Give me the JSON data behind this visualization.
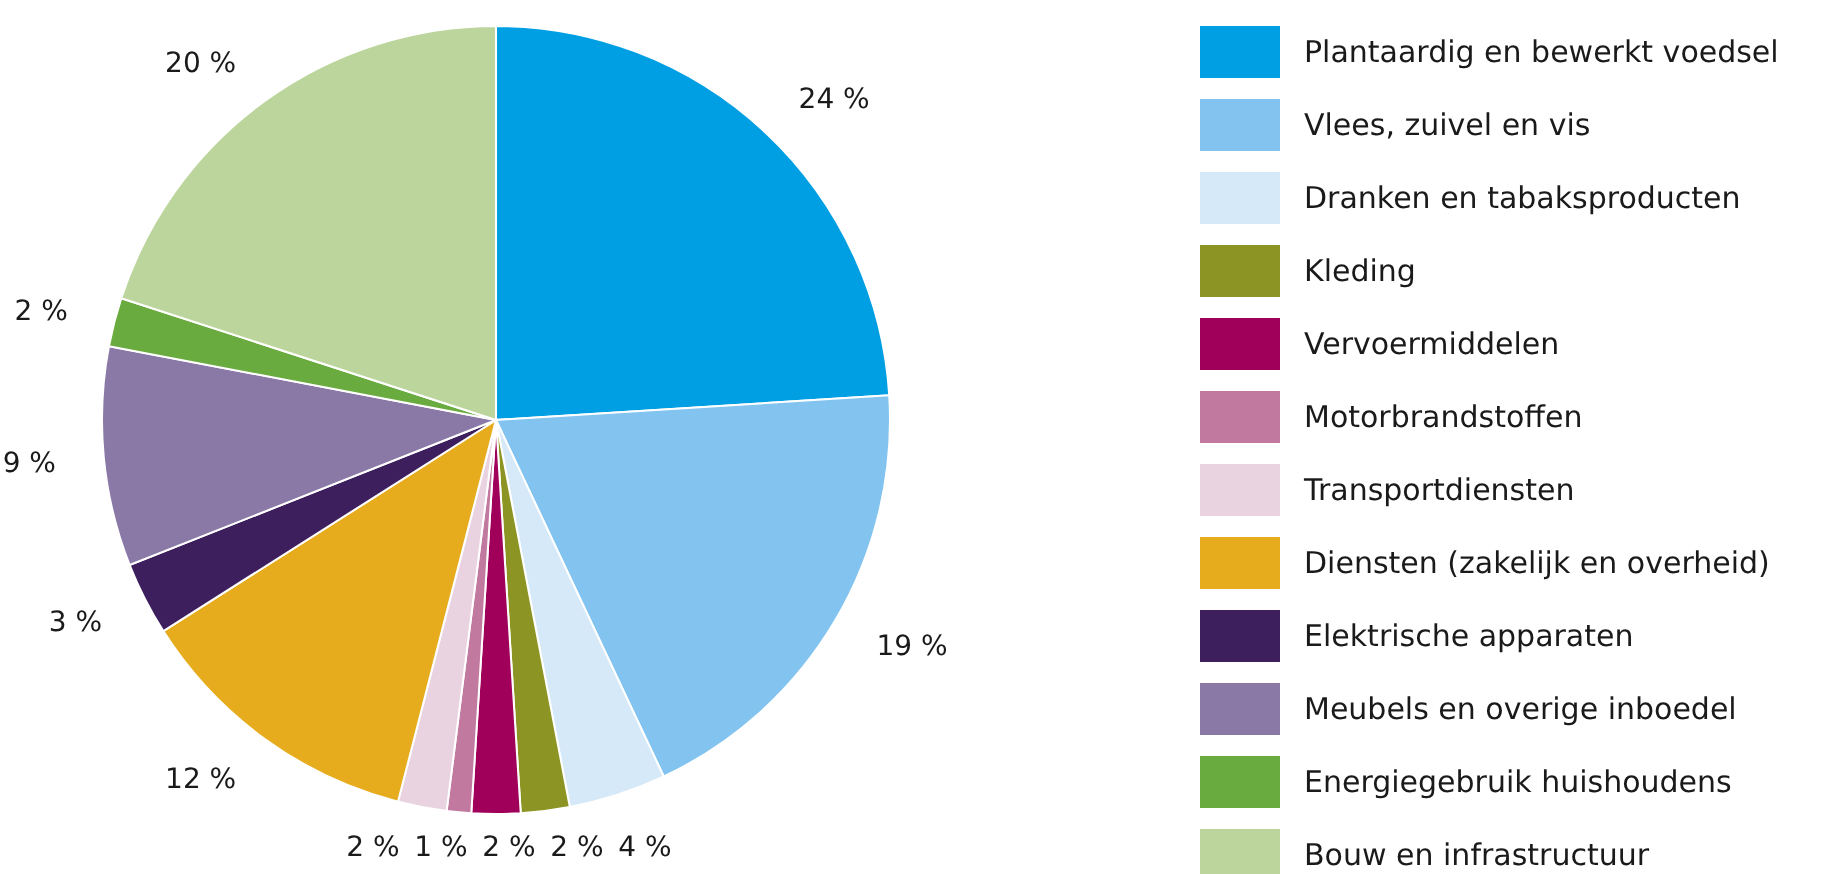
{
  "chart_data": {
    "type": "pie",
    "legend": "right",
    "categories": [
      "Plantaardig en bewerkt voedsel",
      "Vlees, zuivel en vis",
      "Dranken en tabaksproducten",
      "Kleding",
      "Vervoermiddelen",
      "Motorbrandstoffen",
      "Transportdiensten",
      "Diensten (zakelijk en overheid)",
      "Elektrische apparaten",
      "Meubels en overige inboedel",
      "Energiegebruik huishoudens",
      "Bouw en infrastructuur"
    ],
    "values": [
      24,
      19,
      4,
      2,
      2,
      1,
      2,
      12,
      3,
      9,
      2,
      20
    ],
    "value_labels": [
      "24 %",
      "19 %",
      "4 %",
      "2 %",
      "2 %",
      "1 %",
      "2 %",
      "12 %",
      "3 %",
      "9 %",
      "2 %",
      "20 %"
    ],
    "colors": [
      "#009fe3",
      "#82c4ef",
      "#d6e9f8",
      "#8c9424",
      "#a0005a",
      "#c2799f",
      "#ead3e1",
      "#e6ac1e",
      "#3e1f5e",
      "#8a79a6",
      "#6aab3f",
      "#bcd59c"
    ]
  }
}
